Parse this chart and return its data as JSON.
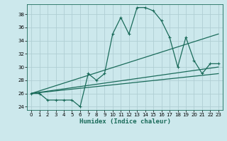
{
  "xlabel": "Humidex (Indice chaleur)",
  "bg_color": "#cce8ec",
  "grid_color": "#b0ced4",
  "line_color": "#1a6b5a",
  "xlim": [
    -0.5,
    23.5
  ],
  "ylim": [
    23.5,
    39.5
  ],
  "xticks": [
    0,
    1,
    2,
    3,
    4,
    5,
    6,
    7,
    8,
    9,
    10,
    11,
    12,
    13,
    14,
    15,
    16,
    17,
    18,
    19,
    20,
    21,
    22,
    23
  ],
  "yticks": [
    24,
    26,
    28,
    30,
    32,
    34,
    36,
    38
  ],
  "series1_x": [
    0,
    1,
    2,
    3,
    4,
    5,
    6,
    7,
    8,
    9,
    10,
    11,
    12,
    13,
    14,
    15,
    16,
    17,
    18,
    19,
    20,
    21,
    22,
    23
  ],
  "series1_y": [
    26,
    26,
    25,
    25,
    25,
    25,
    24,
    29,
    28,
    29,
    35,
    37.5,
    35,
    39,
    39,
    38.5,
    37,
    34.5,
    30,
    34.5,
    31,
    29,
    30.5,
    30.5
  ],
  "series2_x": [
    0,
    23
  ],
  "series2_y": [
    26,
    35
  ],
  "series3_x": [
    0,
    23
  ],
  "series3_y": [
    26,
    30
  ],
  "series4_x": [
    0,
    23
  ],
  "series4_y": [
    26,
    29
  ]
}
